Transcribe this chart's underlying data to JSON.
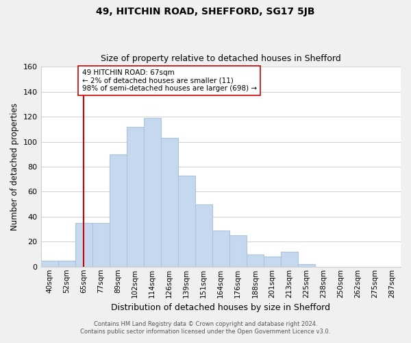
{
  "title1": "49, HITCHIN ROAD, SHEFFORD, SG17 5JB",
  "title2": "Size of property relative to detached houses in Shefford",
  "xlabel": "Distribution of detached houses by size in Shefford",
  "ylabel": "Number of detached properties",
  "bar_labels": [
    "40sqm",
    "52sqm",
    "65sqm",
    "77sqm",
    "89sqm",
    "102sqm",
    "114sqm",
    "126sqm",
    "139sqm",
    "151sqm",
    "164sqm",
    "176sqm",
    "188sqm",
    "201sqm",
    "213sqm",
    "225sqm",
    "238sqm",
    "250sqm",
    "262sqm",
    "275sqm",
    "287sqm"
  ],
  "bar_heights": [
    5,
    5,
    35,
    35,
    90,
    112,
    119,
    103,
    73,
    50,
    29,
    25,
    10,
    8,
    12,
    2,
    0,
    0,
    0,
    0,
    0
  ],
  "bar_color": "#c5d8ed",
  "bar_edge_color": "#a8c4e0",
  "highlight_x_label": "65sqm",
  "highlight_line_color": "#cc0000",
  "ylim": [
    0,
    160
  ],
  "yticks": [
    0,
    20,
    40,
    60,
    80,
    100,
    120,
    140,
    160
  ],
  "annotation_text": "49 HITCHIN ROAD: 67sqm\n← 2% of detached houses are smaller (11)\n98% of semi-detached houses are larger (698) →",
  "annotation_box_color": "#ffffff",
  "annotation_box_edge": "#cc0000",
  "footer1": "Contains HM Land Registry data © Crown copyright and database right 2024.",
  "footer2": "Contains public sector information licensed under the Open Government Licence v3.0.",
  "background_color": "#f0f0f0",
  "plot_bg_color": "#ffffff",
  "grid_color": "#d0d0d0"
}
